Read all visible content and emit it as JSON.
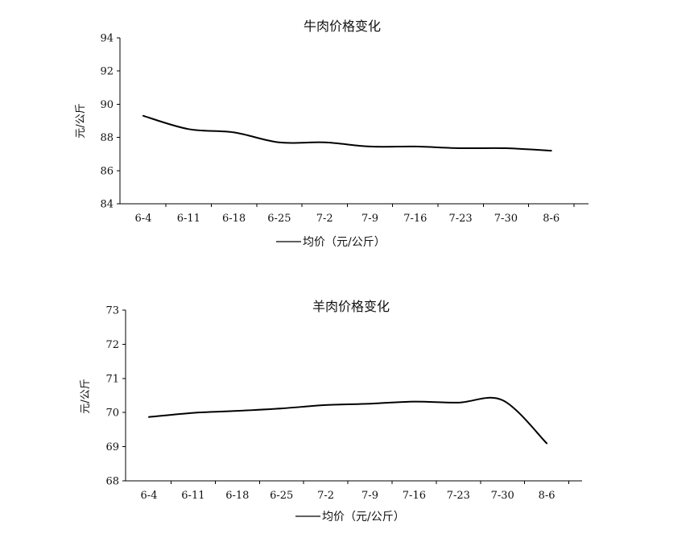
{
  "chart_data": [
    {
      "type": "line",
      "title": "牛肉价格变化",
      "ylabel": "元/公斤",
      "xlabel": "",
      "categories": [
        "6-4",
        "6-11",
        "6-18",
        "6-25",
        "7-2",
        "7-9",
        "7-16",
        "7-23",
        "7-30",
        "8-6"
      ],
      "yticks": [
        84,
        86,
        88,
        90,
        92,
        94
      ],
      "ylim": [
        84,
        94
      ],
      "legend": "top-center",
      "series": [
        {
          "name": "均价（元/公斤）",
          "values": [
            89.3,
            88.5,
            88.3,
            87.7,
            87.7,
            87.45,
            87.45,
            87.35,
            87.35,
            87.2
          ]
        }
      ]
    },
    {
      "type": "line",
      "title": "羊肉价格变化",
      "ylabel": "元/公斤",
      "xlabel": "",
      "categories": [
        "6-4",
        "6-11",
        "6-18",
        "6-25",
        "7-2",
        "7-9",
        "7-16",
        "7-23",
        "7-30",
        "8-6"
      ],
      "yticks": [
        68,
        69,
        70,
        71,
        72,
        73
      ],
      "ylim": [
        68,
        73
      ],
      "legend": "bottom-center",
      "series": [
        {
          "name": "均价（元/公斤）",
          "values": [
            69.87,
            69.99,
            70.05,
            70.12,
            70.22,
            70.26,
            70.32,
            70.29,
            70.36,
            69.1
          ]
        }
      ]
    }
  ]
}
